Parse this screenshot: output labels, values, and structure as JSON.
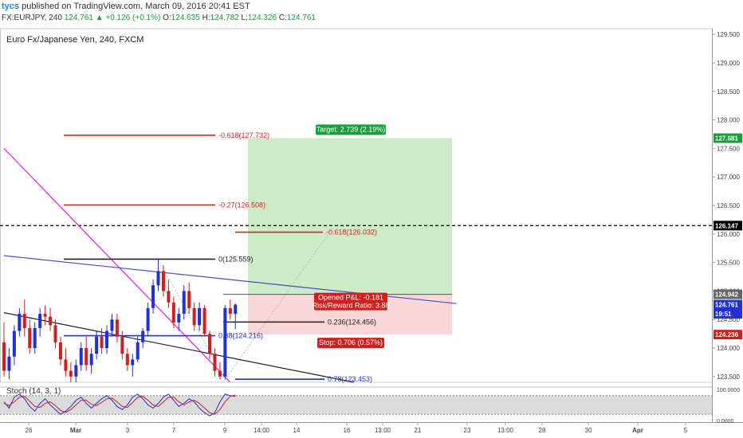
{
  "header": {
    "user": "tycs",
    "published": "published on TradingView.com, March 09, 2016 20:41 EST",
    "symbol": "FX:EURJPY, 240",
    "last": "124.761",
    "change": "+0.126 (+0.1%)",
    "o_label": "O:",
    "o": "124.635",
    "h_label": "H:",
    "h": "124.782",
    "l_label": "L:",
    "l": "124.326",
    "c_label": "C:",
    "c": "124.761"
  },
  "chart_title": "Euro Fx/Japanese Yen, 240, FXCM",
  "stoch_label": "Stoch (14, 3, 1)",
  "colors": {
    "bull": "#2130d8",
    "bear": "#d01f1f",
    "target_zone": "#c7e9c0",
    "stop_zone": "#f9d2d2",
    "trend_magenta": "#e01ee0",
    "trend_blue": "#4050d0",
    "price_tag": "#2130d8",
    "target_tag": "#1a9e3a",
    "stop_tag": "#d01f1f"
  },
  "chart_data": {
    "type": "candlestick",
    "y_axis": {
      "min": 123.4,
      "max": 129.6,
      "ticks": [
        "129.500",
        "129.000",
        "128.500",
        "128.000",
        "127.500",
        "127.000",
        "126.500",
        "126.000",
        "125.500",
        "125.000",
        "124.500",
        "124.000",
        "123.500"
      ]
    },
    "x_axis": {
      "ticks": [
        "26",
        "Mar",
        "3",
        "7",
        "9",
        "14:00",
        "14",
        "16",
        "13:00",
        "21",
        "23",
        "13:00",
        "28",
        "30",
        "Apr",
        "5"
      ]
    },
    "price_markers": [
      {
        "label": "127.681",
        "value": 127.68,
        "type": "target"
      },
      {
        "label": "126.147",
        "value": 126.147,
        "type": "dashed"
      },
      {
        "label": "124.942",
        "value": 124.942,
        "type": "neutral"
      },
      {
        "label": "124.761",
        "value": 124.761,
        "type": "last"
      },
      {
        "label": "19:51",
        "value": 124.6,
        "type": "last"
      },
      {
        "label": "124.236",
        "value": 124.236,
        "type": "stop"
      }
    ],
    "dashed_level": 126.147,
    "candles": [
      {
        "o": 124.1,
        "h": 124.45,
        "l": 123.5,
        "c": 123.6
      },
      {
        "o": 123.6,
        "h": 124.0,
        "l": 123.45,
        "c": 123.85
      },
      {
        "o": 123.85,
        "h": 124.4,
        "l": 123.7,
        "c": 124.3
      },
      {
        "o": 124.3,
        "h": 124.7,
        "l": 124.2,
        "c": 124.6
      },
      {
        "o": 124.6,
        "h": 124.85,
        "l": 124.2,
        "c": 124.35
      },
      {
        "o": 124.35,
        "h": 124.5,
        "l": 123.9,
        "c": 124.0
      },
      {
        "o": 124.0,
        "h": 124.45,
        "l": 123.9,
        "c": 124.35
      },
      {
        "o": 124.35,
        "h": 124.7,
        "l": 124.2,
        "c": 124.6
      },
      {
        "o": 124.6,
        "h": 124.75,
        "l": 124.4,
        "c": 124.55
      },
      {
        "o": 124.55,
        "h": 124.7,
        "l": 124.3,
        "c": 124.4
      },
      {
        "o": 124.4,
        "h": 124.5,
        "l": 124.0,
        "c": 124.1
      },
      {
        "o": 124.1,
        "h": 124.2,
        "l": 123.7,
        "c": 123.8
      },
      {
        "o": 123.8,
        "h": 124.0,
        "l": 123.5,
        "c": 123.6
      },
      {
        "o": 123.6,
        "h": 123.75,
        "l": 123.4,
        "c": 123.5
      },
      {
        "o": 123.5,
        "h": 123.8,
        "l": 123.4,
        "c": 123.7
      },
      {
        "o": 123.7,
        "h": 124.1,
        "l": 123.6,
        "c": 124.0
      },
      {
        "o": 124.0,
        "h": 124.2,
        "l": 123.6,
        "c": 123.7
      },
      {
        "o": 123.7,
        "h": 124.0,
        "l": 123.55,
        "c": 123.9
      },
      {
        "o": 123.9,
        "h": 124.3,
        "l": 123.8,
        "c": 124.2
      },
      {
        "o": 124.2,
        "h": 124.35,
        "l": 123.9,
        "c": 124.0
      },
      {
        "o": 124.0,
        "h": 124.4,
        "l": 123.9,
        "c": 124.3
      },
      {
        "o": 124.3,
        "h": 124.6,
        "l": 124.2,
        "c": 124.5
      },
      {
        "o": 124.5,
        "h": 124.6,
        "l": 124.1,
        "c": 124.2
      },
      {
        "o": 124.2,
        "h": 124.3,
        "l": 123.8,
        "c": 123.9
      },
      {
        "o": 123.9,
        "h": 124.0,
        "l": 123.6,
        "c": 123.7
      },
      {
        "o": 123.7,
        "h": 123.9,
        "l": 123.5,
        "c": 123.8
      },
      {
        "o": 123.8,
        "h": 124.2,
        "l": 123.75,
        "c": 124.1
      },
      {
        "o": 124.1,
        "h": 124.35,
        "l": 124.0,
        "c": 124.3
      },
      {
        "o": 124.3,
        "h": 124.8,
        "l": 124.2,
        "c": 124.7
      },
      {
        "o": 124.7,
        "h": 125.2,
        "l": 124.6,
        "c": 125.1
      },
      {
        "o": 125.1,
        "h": 125.56,
        "l": 125.0,
        "c": 125.35
      },
      {
        "o": 125.35,
        "h": 125.45,
        "l": 124.9,
        "c": 125.0
      },
      {
        "o": 125.0,
        "h": 125.2,
        "l": 124.7,
        "c": 124.8
      },
      {
        "o": 124.8,
        "h": 124.9,
        "l": 124.35,
        "c": 124.45
      },
      {
        "o": 124.45,
        "h": 124.7,
        "l": 124.3,
        "c": 124.6
      },
      {
        "o": 124.6,
        "h": 125.1,
        "l": 124.5,
        "c": 125.0
      },
      {
        "o": 125.0,
        "h": 125.15,
        "l": 124.6,
        "c": 124.7
      },
      {
        "o": 124.7,
        "h": 124.8,
        "l": 124.3,
        "c": 124.4
      },
      {
        "o": 124.4,
        "h": 124.8,
        "l": 124.3,
        "c": 124.7
      },
      {
        "o": 124.7,
        "h": 124.75,
        "l": 124.2,
        "c": 124.25
      },
      {
        "o": 124.25,
        "h": 124.3,
        "l": 123.8,
        "c": 123.9
      },
      {
        "o": 123.9,
        "h": 124.0,
        "l": 123.5,
        "c": 123.6
      },
      {
        "o": 123.6,
        "h": 123.75,
        "l": 123.45,
        "c": 123.5
      },
      {
        "o": 123.5,
        "h": 124.75,
        "l": 123.45,
        "c": 124.7
      },
      {
        "o": 124.7,
        "h": 124.85,
        "l": 124.5,
        "c": 124.6
      },
      {
        "o": 124.6,
        "h": 124.78,
        "l": 124.33,
        "c": 124.76
      }
    ],
    "fib_levels": [
      {
        "label": "-0.618(127.732)",
        "value": 127.732,
        "color": "#e02020"
      },
      {
        "label": "-0.27(126.508)",
        "value": 126.508,
        "color": "#e02020"
      },
      {
        "label": "-0.618(126.032)",
        "value": 126.032,
        "color": "#e02020"
      },
      {
        "label": "0(125.559)",
        "value": 125.559,
        "color": "#222222"
      },
      {
        "label": "0.236(124.456)",
        "value": 124.456,
        "color": "#222222"
      },
      {
        "label": "0.38(124.216)",
        "value": 124.216,
        "color": "#2130d8"
      },
      {
        "label": "0.78(123.453)",
        "value": 123.453,
        "color": "#2130d8"
      }
    ],
    "position": {
      "entry": 124.942,
      "target": 127.681,
      "stop": 124.236,
      "target_label": "Target: 2.739 (2.19%)",
      "pnl_label": "Opened P&L: -0.181",
      "rr_label": "Risk/Reward Ratio: 3.88",
      "stop_label": "Stop: 0.706 (0.57%)"
    },
    "trendlines": [
      {
        "name": "magenta",
        "from": [
          0,
          127.5
        ],
        "to": [
          44,
          123.4
        ],
        "color": "#e01ee0"
      },
      {
        "name": "blue",
        "from": [
          0,
          125.62
        ],
        "to": [
          88,
          124.78
        ],
        "color": "#4050d0"
      },
      {
        "name": "black",
        "from": [
          0,
          124.62
        ],
        "to": [
          68,
          123.4
        ],
        "color": "#222222"
      }
    ],
    "stochastic": {
      "params": "14, 3, 1",
      "ylim": [
        0,
        100
      ],
      "ticks": [
        "100.0000",
        "0.0000"
      ],
      "k": [
        60,
        40,
        75,
        85,
        70,
        45,
        30,
        55,
        70,
        50,
        35,
        20,
        30,
        45,
        65,
        75,
        55,
        40,
        55,
        70,
        80,
        65,
        45,
        35,
        50,
        75,
        85,
        70,
        50,
        40,
        55,
        75,
        85,
        65,
        45,
        55,
        70,
        60,
        40,
        25,
        15,
        25,
        60,
        85,
        80,
        78
      ],
      "d": [
        55,
        48,
        60,
        75,
        78,
        62,
        45,
        42,
        55,
        60,
        48,
        32,
        26,
        35,
        50,
        65,
        65,
        52,
        48,
        58,
        70,
        72,
        60,
        45,
        42,
        58,
        75,
        78,
        65,
        50,
        45,
        60,
        75,
        75,
        60,
        50,
        60,
        65,
        55,
        40,
        25,
        20,
        35,
        60,
        78,
        82
      ]
    }
  }
}
